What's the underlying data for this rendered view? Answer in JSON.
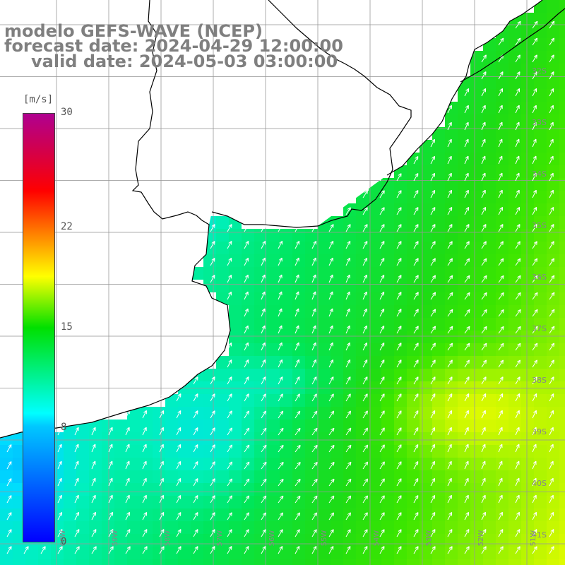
{
  "title": {
    "line1": "modelo GEFS-WAVE (NCEP)",
    "line2": "forecast date: 2024-04-29 12:00:00",
    "line3": "valid date: 2024-05-03 03:00:00"
  },
  "colorbar": {
    "units": "[m/s]",
    "ticks": [
      {
        "value": 30,
        "label": "30"
      },
      {
        "value": 22,
        "label": "22"
      },
      {
        "value": 15,
        "label": "15"
      },
      {
        "value": 8,
        "label": "8"
      },
      {
        "value": 0,
        "label": "0"
      }
    ],
    "min": 0,
    "max": 30
  },
  "map": {
    "land_color": "#ffffff",
    "coast_color": "#000000",
    "grid_color": "#999999",
    "arrow_color": "#ffffff",
    "lat_labels": [
      "32S",
      "33S",
      "34S",
      "35S",
      "36S",
      "37S",
      "38S",
      "39S",
      "40S",
      "41S"
    ],
    "lon_labels": [
      "60W",
      "59W",
      "58W",
      "57W",
      "56W",
      "55W",
      "54W",
      "53W",
      "52W",
      "51W"
    ],
    "wind_direction": "from south-west"
  }
}
